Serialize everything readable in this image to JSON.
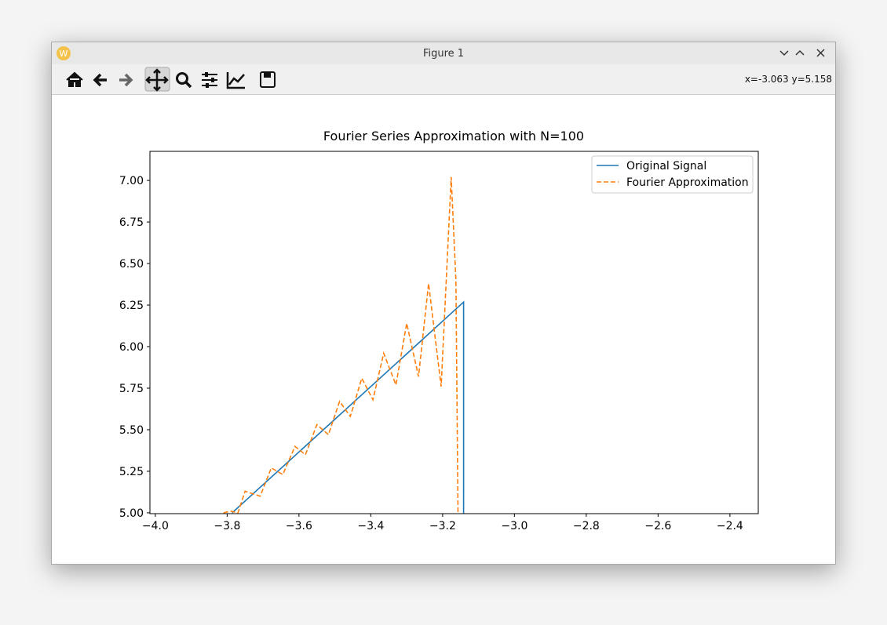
{
  "window": {
    "title": "Figure 1"
  },
  "toolbar": {
    "status": "x=-3.063 y=5.158"
  },
  "chart_data": {
    "type": "line",
    "title": "Fourier Series Approximation with N=100",
    "series": [
      {
        "name": "Original Signal",
        "color": "#1f77b4",
        "dash": false,
        "x": [
          -3.786,
          -3.1416,
          -3.1416
        ],
        "values": [
          5.0,
          6.268,
          4.99
        ]
      },
      {
        "name": "Fourier Approximation",
        "color": "#ff7f0e",
        "dash": true,
        "x": [
          -3.81,
          -3.79,
          -3.77,
          -3.75,
          -3.708,
          -3.677,
          -3.645,
          -3.611,
          -3.582,
          -3.55,
          -3.518,
          -3.487,
          -3.457,
          -3.425,
          -3.394,
          -3.364,
          -3.33,
          -3.3,
          -3.267,
          -3.239,
          -3.204,
          -3.176,
          -3.163,
          -3.157
        ],
        "values": [
          5.0,
          5.01,
          5.0,
          5.13,
          5.1,
          5.27,
          5.23,
          5.4,
          5.35,
          5.53,
          5.47,
          5.67,
          5.58,
          5.81,
          5.68,
          5.96,
          5.77,
          6.14,
          5.82,
          6.38,
          5.76,
          7.02,
          6.4,
          4.99
        ]
      }
    ],
    "xlim": [
      -4.015,
      -2.321
    ],
    "ylim": [
      4.995,
      7.175
    ],
    "xticks": [
      {
        "value": -4.0,
        "label": "−4.0"
      },
      {
        "value": -3.8,
        "label": "−3.8"
      },
      {
        "value": -3.6,
        "label": "−3.6"
      },
      {
        "value": -3.4,
        "label": "−3.4"
      },
      {
        "value": -3.2,
        "label": "−3.2"
      },
      {
        "value": -3.0,
        "label": "−3.0"
      },
      {
        "value": -2.8,
        "label": "−2.8"
      },
      {
        "value": -2.6,
        "label": "−2.6"
      },
      {
        "value": -2.4,
        "label": "−2.4"
      }
    ],
    "yticks": [
      {
        "value": 5,
        "label": "5.00"
      },
      5.25,
      {
        "value": 5.5,
        "label": "5.50"
      },
      5.75,
      {
        "value": 6,
        "label": "6.00"
      },
      6.25,
      {
        "value": 6.5,
        "label": "6.50"
      },
      6.75,
      {
        "value": 7,
        "label": "7.00"
      }
    ],
    "legend": "upper right",
    "grid": false
  }
}
